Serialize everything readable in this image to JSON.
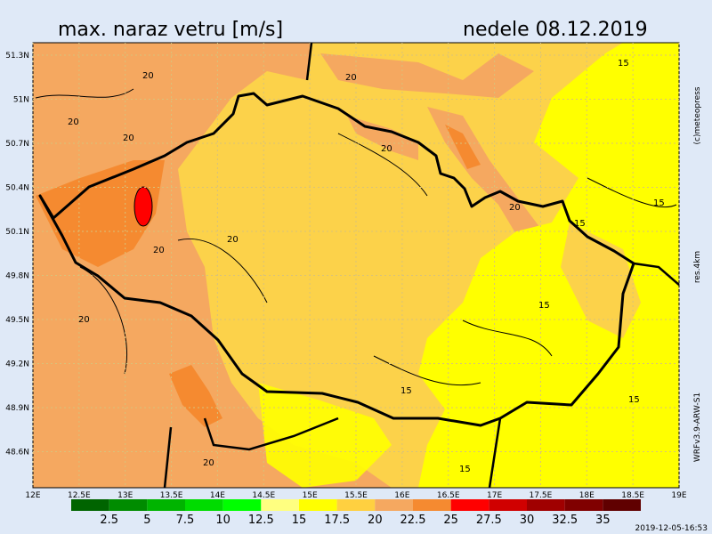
{
  "header": {
    "title": "max. naraz vetru [m/s]",
    "date": "nedele 08.12.2019"
  },
  "side": {
    "credit": "(c)meteopress",
    "resolution": "res.4km",
    "model": "WRFv3.9-ARW-S1"
  },
  "map": {
    "lat_labels": [
      "51.3N",
      "51N",
      "50.7N",
      "50.4N",
      "50.1N",
      "49.8N",
      "49.5N",
      "49.2N",
      "48.9N",
      "48.6N"
    ],
    "lon_labels": [
      "12E",
      "12.5E",
      "13E",
      "13.5E",
      "14E",
      "14.5E",
      "15E",
      "15.5E",
      "16E",
      "16.5E",
      "17E",
      "17.5E",
      "18E",
      "18.5E",
      "19E"
    ],
    "contour_labels": [
      "20",
      "20",
      "20",
      "20",
      "20",
      "20",
      "20",
      "20",
      "20",
      "15",
      "15",
      "15",
      "15",
      "15",
      "15",
      "15"
    ]
  },
  "legend": {
    "colors": [
      "#006400",
      "#008c00",
      "#00b400",
      "#00dc00",
      "#00ff00",
      "#ffff80",
      "#ffff00",
      "#ffd040",
      "#f5a860",
      "#f58a30",
      "#ff0000",
      "#d00000",
      "#a00000",
      "#800000",
      "#600000"
    ],
    "labels": [
      "2.5",
      "5",
      "7.5",
      "10",
      "12.5",
      "15",
      "17.5",
      "20",
      "22.5",
      "25",
      "27.5",
      "30",
      "32.5",
      "35"
    ]
  },
  "footer": {
    "timestamp": "2019-12-05-16:53"
  }
}
